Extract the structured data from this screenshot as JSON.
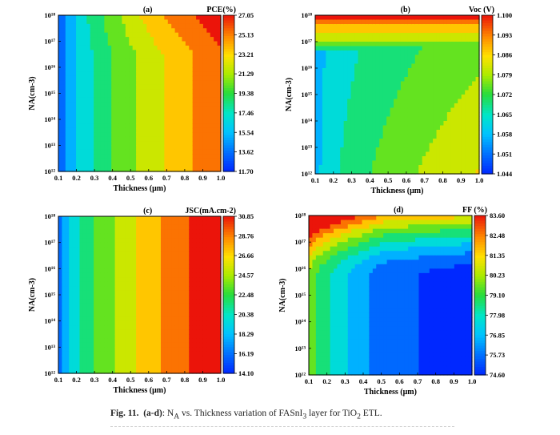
{
  "figure": {
    "caption_label": "Fig. 11.",
    "caption_parts": "(a-d)",
    "caption_text": ": N",
    "caption_sub": "A",
    "caption_mid": " vs. Thickness variation of FASnI",
    "caption_sub2": "3",
    "caption_mid2": " layer for TiO",
    "caption_sub3": "2",
    "caption_end": " ETL."
  },
  "chart_data": [
    {
      "type": "heatmap",
      "panel": "(a)",
      "title": "PCE(%)",
      "xlabel": "Thickness (μm)",
      "ylabel": "NA(cm-3)",
      "x_ticks": [
        "0.1",
        "0.2",
        "0.3",
        "0.4",
        "0.5",
        "0.6",
        "0.7",
        "0.8",
        "0.9",
        "1.0"
      ],
      "y_ticks": [
        "10¹²",
        "10¹³",
        "10¹⁴",
        "10¹⁵",
        "10¹⁶",
        "10¹⁷",
        "10¹⁸"
      ],
      "xlim": [
        0.1,
        1.0
      ],
      "ylim_log10": [
        12,
        18
      ],
      "colorbar_ticks": [
        "27.05",
        "25.13",
        "23.21",
        "21.29",
        "19.38",
        "17.46",
        "15.54",
        "13.62",
        "11.70"
      ],
      "zlim": [
        11.7,
        27.05
      ]
    },
    {
      "type": "heatmap",
      "panel": "(b)",
      "title": "Voc (V)",
      "xlabel": "Thickness (μm)",
      "ylabel": "NA(cm-3)",
      "x_ticks": [
        "0.1",
        "0.2",
        "0.3",
        "0.4",
        "0.5",
        "0.6",
        "0.7",
        "0.8",
        "0.9",
        "1.0"
      ],
      "y_ticks": [
        "10¹²",
        "10¹³",
        "10¹⁴",
        "10¹⁵",
        "10¹⁶",
        "10¹⁷",
        "10¹⁸"
      ],
      "xlim": [
        0.1,
        1.0
      ],
      "ylim_log10": [
        12,
        18
      ],
      "colorbar_ticks": [
        "1.100",
        "1.093",
        "1.086",
        "1.079",
        "1.072",
        "1.065",
        "1.058",
        "1.051",
        "1.044"
      ],
      "zlim": [
        1.044,
        1.1
      ]
    },
    {
      "type": "heatmap",
      "panel": "(c)",
      "title": "JSC(mA.cm-2)",
      "xlabel": "Thickness (μm)",
      "ylabel": "NA(cm-3)",
      "x_ticks": [
        "0.1",
        "0.2",
        "0.3",
        "0.4",
        "0.5",
        "0.6",
        "0.7",
        "0.8",
        "0.9",
        "1.0"
      ],
      "y_ticks": [
        "10¹²",
        "10¹³",
        "10¹⁴",
        "10¹⁵",
        "10¹⁶",
        "10¹⁷",
        "10¹⁸"
      ],
      "xlim": [
        0.1,
        1.0
      ],
      "ylim_log10": [
        12,
        18
      ],
      "colorbar_ticks": [
        "30.85",
        "28.76",
        "26.66",
        "24.57",
        "22.48",
        "20.38",
        "18.29",
        "16.19",
        "14.10"
      ],
      "zlim": [
        14.1,
        30.85
      ]
    },
    {
      "type": "heatmap",
      "panel": "(d)",
      "title": "FF (%)",
      "xlabel": "Thickness (μm)",
      "ylabel": "NA(cm-3)",
      "x_ticks": [
        "0.1",
        "0.2",
        "0.3",
        "0.4",
        "0.5",
        "0.6",
        "0.7",
        "0.8",
        "0.9",
        "1.0"
      ],
      "y_ticks": [
        "10¹²",
        "10¹³",
        "10¹⁴",
        "10¹⁵",
        "10¹⁶",
        "10¹⁷",
        "10¹⁸"
      ],
      "xlim": [
        0.1,
        1.0
      ],
      "ylim_log10": [
        12,
        18
      ],
      "colorbar_ticks": [
        "83.60",
        "82.48",
        "81.35",
        "80.23",
        "79.10",
        "77.98",
        "76.85",
        "75.73",
        "74.60"
      ],
      "zlim": [
        74.6,
        83.6
      ]
    }
  ]
}
